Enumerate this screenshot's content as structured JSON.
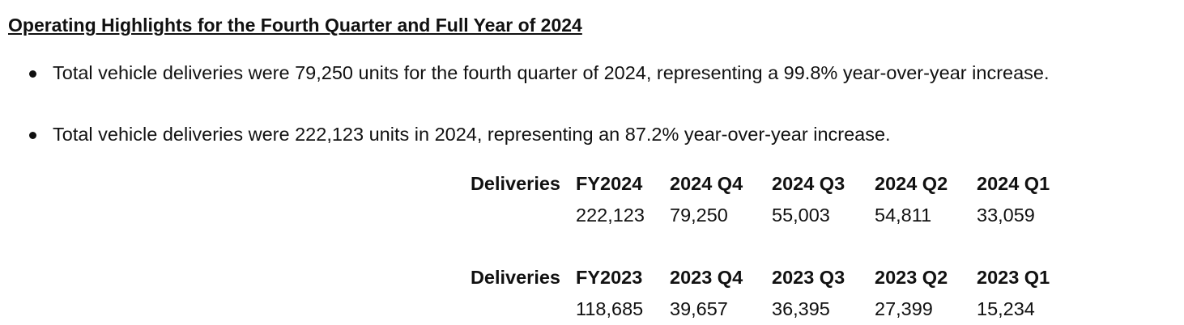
{
  "title": "Operating Highlights for the Fourth Quarter and Full Year of 2024",
  "bullets": [
    "Total vehicle deliveries were 79,250 units for the fourth quarter of 2024, representing a 99.8% year-over-year increase.",
    "Total vehicle deliveries were 222,123 units in 2024, representing an 87.2% year-over-year increase."
  ],
  "tables": [
    {
      "header": [
        "Deliveries",
        "FY2024",
        "2024 Q4",
        "2024 Q3",
        "2024 Q2",
        "2024 Q1"
      ],
      "values": [
        "222,123",
        "79,250",
        "55,003",
        "54,811",
        "33,059"
      ]
    },
    {
      "header": [
        "Deliveries",
        "FY2023",
        "2023 Q4",
        "2023 Q3",
        "2023 Q2",
        "2023 Q1"
      ],
      "values": [
        "118,685",
        "39,657",
        "36,395",
        "27,399",
        "15,234"
      ]
    }
  ]
}
